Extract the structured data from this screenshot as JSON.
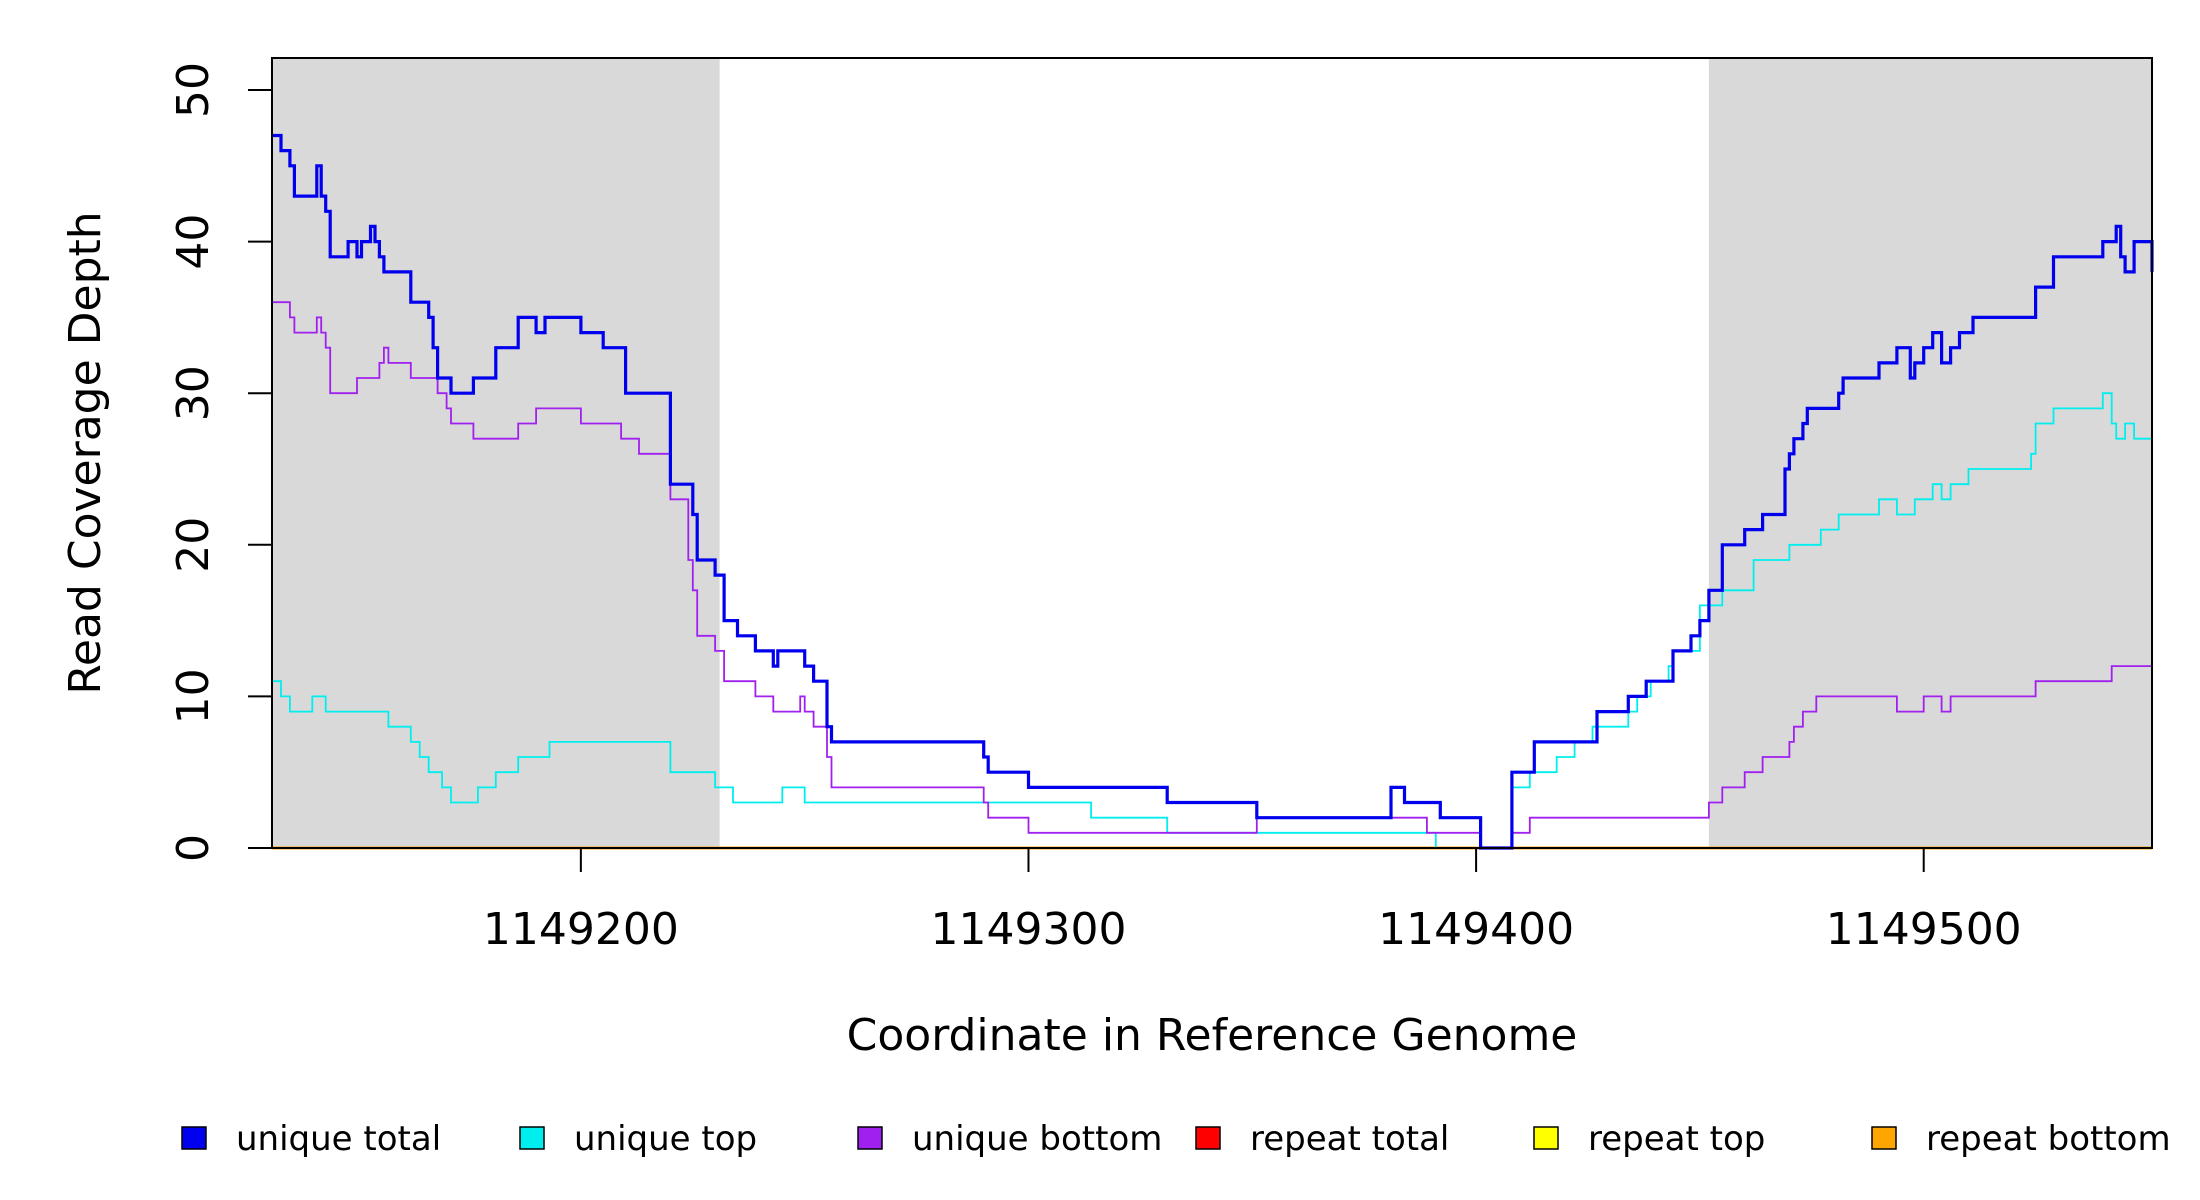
{
  "chart_data": {
    "type": "line",
    "title": "",
    "xlabel": "Coordinate in Reference Genome",
    "ylabel": "Read Coverage Depth",
    "xlim": [
      1149131,
      1149551
    ],
    "ylim": [
      0,
      50
    ],
    "x_ticks": [
      1149200,
      1149300,
      1149400,
      1149500
    ],
    "x_tick_labels": [
      "1149200",
      "1149300",
      "1149400",
      "1149500"
    ],
    "y_ticks": [
      0,
      10,
      20,
      30,
      40,
      50
    ],
    "y_tick_labels": [
      "0",
      "10",
      "20",
      "30",
      "40",
      "50"
    ],
    "grid": false,
    "legend_position": "bottom",
    "shaded_regions": [
      {
        "x0": 1149131,
        "x1": 1149231,
        "color": "#d9d9d9"
      },
      {
        "x0": 1149452,
        "x1": 1149551,
        "color": "#d9d9d9"
      }
    ],
    "series": [
      {
        "name": "unique total",
        "color": "#0000ee",
        "x": [
          1149131,
          1149133,
          1149135,
          1149136,
          1149141,
          1149142,
          1149143,
          1149144,
          1149148,
          1149150,
          1149151,
          1149153,
          1149154,
          1149155,
          1149156,
          1149157,
          1149162,
          1149163,
          1149166,
          1149167,
          1149168,
          1149171,
          1149176,
          1149181,
          1149186,
          1149190,
          1149192,
          1149200,
          1149205,
          1149210,
          1149220,
          1149225,
          1149226,
          1149230,
          1149232,
          1149235,
          1149239,
          1149243,
          1149244,
          1149246,
          1149250,
          1149252,
          1149255,
          1149256,
          1149285,
          1149290,
          1149291,
          1149300,
          1149314,
          1149331,
          1149351,
          1149381,
          1149384,
          1149392,
          1149401,
          1149406,
          1149408,
          1149413,
          1149422,
          1149427,
          1149434,
          1149435,
          1149438,
          1149444,
          1149448,
          1149449,
          1149450,
          1149452,
          1149455,
          1149460,
          1149464,
          1149469,
          1149470,
          1149471,
          1149473,
          1149474,
          1149481,
          1149482,
          1149490,
          1149494,
          1149497,
          1149498,
          1149500,
          1149502,
          1149504,
          1149506,
          1149508,
          1149511,
          1149524,
          1149525,
          1149529,
          1149540,
          1149542,
          1149543,
          1149544,
          1149545,
          1149547,
          1149551
        ],
        "y": [
          47,
          46,
          45,
          43,
          45,
          43,
          42,
          39,
          40,
          39,
          40,
          41,
          40,
          39,
          38,
          38,
          36,
          36,
          35,
          33,
          31,
          30,
          31,
          33,
          35,
          34,
          35,
          34,
          33,
          30,
          24,
          22,
          19,
          18,
          15,
          14,
          13,
          12,
          13,
          13,
          12,
          11,
          8,
          7,
          7,
          6,
          5,
          4,
          4,
          3,
          2,
          4,
          3,
          2,
          0,
          0,
          5,
          7,
          7,
          9,
          10,
          10,
          11,
          13,
          14,
          14,
          15,
          17,
          20,
          21,
          22,
          25,
          26,
          27,
          28,
          29,
          30,
          31,
          32,
          33,
          31,
          32,
          33,
          34,
          32,
          33,
          34,
          35,
          35,
          37,
          39,
          40,
          40,
          41,
          39,
          38,
          40,
          38
        ]
      },
      {
        "name": "unique top",
        "color": "#00eeee",
        "x": [
          1149131,
          1149133,
          1149135,
          1149140,
          1149141,
          1149143,
          1149150,
          1149152,
          1149157,
          1149162,
          1149164,
          1149166,
          1149167,
          1149169,
          1149171,
          1149177,
          1149181,
          1149186,
          1149193,
          1149200,
          1149220,
          1149230,
          1149234,
          1149245,
          1149250,
          1149255,
          1149285,
          1149314,
          1149331,
          1149382,
          1149391,
          1149401,
          1149408,
          1149412,
          1149415,
          1149418,
          1149422,
          1149426,
          1149434,
          1149436,
          1149437,
          1149439,
          1149441,
          1149443,
          1149444,
          1149450,
          1149455,
          1149462,
          1149470,
          1149473,
          1149477,
          1149481,
          1149490,
          1149494,
          1149496,
          1149498,
          1149502,
          1149504,
          1149506,
          1149510,
          1149511,
          1149524,
          1149525,
          1149529,
          1149538,
          1149540,
          1149542,
          1149543,
          1149545,
          1149547,
          1149551
        ],
        "y": [
          11,
          10,
          9,
          10,
          10,
          9,
          9,
          9,
          8,
          7,
          6,
          5,
          5,
          4,
          3,
          4,
          5,
          6,
          7,
          7,
          5,
          4,
          3,
          4,
          3,
          3,
          3,
          2,
          1,
          1,
          0,
          0,
          4,
          5,
          5,
          6,
          7,
          8,
          9,
          10,
          10,
          11,
          11,
          12,
          13,
          16,
          17,
          19,
          20,
          20,
          21,
          22,
          23,
          22,
          22,
          23,
          24,
          23,
          24,
          25,
          25,
          26,
          28,
          29,
          29,
          30,
          28,
          27,
          28,
          27,
          27
        ]
      },
      {
        "name": "unique bottom",
        "color": "#a020f0",
        "x": [
          1149131,
          1149135,
          1149136,
          1149137,
          1149141,
          1149142,
          1149143,
          1149144,
          1149149,
          1149150,
          1149152,
          1149154,
          1149155,
          1149156,
          1149157,
          1149162,
          1149167,
          1149168,
          1149170,
          1149171,
          1149176,
          1149181,
          1149186,
          1149190,
          1149200,
          1149205,
          1149209,
          1149213,
          1149220,
          1149224,
          1149225,
          1149226,
          1149230,
          1149232,
          1149235,
          1149239,
          1149243,
          1149244,
          1149246,
          1149249,
          1149250,
          1149252,
          1149255,
          1149256,
          1149285,
          1149290,
          1149291,
          1149300,
          1149351,
          1149371,
          1149381,
          1149389,
          1149401,
          1149408,
          1149412,
          1149425,
          1149450,
          1149452,
          1149455,
          1149460,
          1149464,
          1149470,
          1149471,
          1149473,
          1149476,
          1149481,
          1149490,
          1149494,
          1149500,
          1149504,
          1149506,
          1149510,
          1149524,
          1149525,
          1149529,
          1149540,
          1149542,
          1149551
        ],
        "y": [
          36,
          35,
          34,
          34,
          35,
          34,
          33,
          30,
          30,
          31,
          31,
          31,
          32,
          33,
          32,
          31,
          31,
          30,
          29,
          28,
          27,
          27,
          28,
          29,
          28,
          28,
          27,
          26,
          23,
          19,
          17,
          14,
          13,
          11,
          11,
          10,
          9,
          9,
          9,
          10,
          9,
          8,
          6,
          4,
          4,
          3,
          2,
          1,
          2,
          2,
          2,
          1,
          0,
          1,
          2,
          2,
          2,
          3,
          4,
          5,
          6,
          7,
          8,
          9,
          10,
          10,
          10,
          9,
          10,
          9,
          10,
          10,
          10,
          11,
          11,
          11,
          12,
          11
        ]
      },
      {
        "name": "repeat total",
        "color": "#ff0000",
        "x": [
          1149131,
          1149551
        ],
        "y": [
          0,
          0
        ]
      },
      {
        "name": "repeat top",
        "color": "#ffff00",
        "x": [
          1149131,
          1149551
        ],
        "y": [
          0,
          0
        ]
      },
      {
        "name": "repeat bottom",
        "color": "#ffa500",
        "x": [
          1149131,
          1149551
        ],
        "y": [
          0,
          0
        ]
      }
    ]
  }
}
